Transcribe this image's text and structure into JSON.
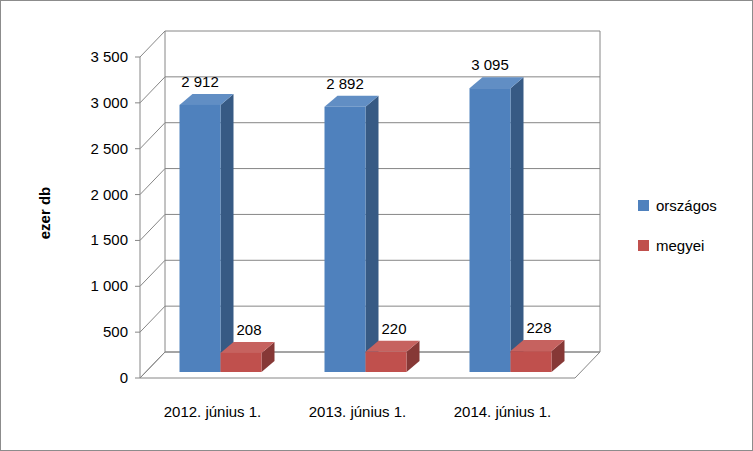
{
  "chart_data": {
    "type": "bar",
    "y_label": "ezer db",
    "categories": [
      "2012. június 1.",
      "2013. június 1.",
      "2014. június 1."
    ],
    "series": [
      {
        "name": "országos",
        "color": "#4f81bd",
        "values": [
          2912,
          2892,
          3095
        ],
        "value_labels": [
          "2 912",
          "2 892",
          "3 095"
        ]
      },
      {
        "name": "megyei",
        "color": "#c0504d",
        "values": [
          208,
          220,
          228
        ]
      }
    ],
    "ylim": [
      0,
      3500
    ],
    "yticks": [
      0,
      500,
      {
        "value": 1000,
        "label": "1 000"
      },
      {
        "value": 1500,
        "label": "1 500"
      },
      {
        "value": 2000,
        "label": "2 000"
      },
      {
        "value": 2500,
        "label": "2 500"
      },
      {
        "value": 3000,
        "label": "3 000"
      },
      {
        "value": 3500,
        "label": "3 500"
      }
    ],
    "grid": true,
    "legend": "right",
    "data_labels": true
  }
}
